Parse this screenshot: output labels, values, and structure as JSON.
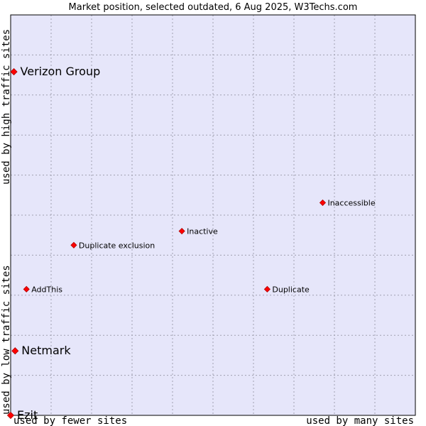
{
  "chart_data": {
    "type": "scatter",
    "title": "Market position, selected outdated, 6 Aug 2025, W3Techs.com",
    "xlabel_left": "used by fewer sites",
    "xlabel_right": "used by many sites",
    "ylabel_bottom": "used by low traffic sites",
    "ylabel_top": "used by high traffic sites",
    "xlim": [
      0,
      100
    ],
    "ylim": [
      0,
      100
    ],
    "grid": true,
    "colors": {
      "plot_bg": "#e6e6fa",
      "point": "#ff0000",
      "point_edge": "#b00000",
      "border": "#000000"
    },
    "points": [
      {
        "label": "Verizon Group",
        "x": 0.8,
        "y": 85.8,
        "size": "large"
      },
      {
        "label": "Inaccessible",
        "x": 77.1,
        "y": 53.1,
        "size": "small"
      },
      {
        "label": "Inactive",
        "x": 42.3,
        "y": 46.0,
        "size": "small"
      },
      {
        "label": "Duplicate exclusion",
        "x": 15.6,
        "y": 42.5,
        "size": "small"
      },
      {
        "label": "AddThis",
        "x": 3.9,
        "y": 31.5,
        "size": "small"
      },
      {
        "label": "Duplicate",
        "x": 63.4,
        "y": 31.5,
        "size": "small"
      },
      {
        "label": "Netmark",
        "x": 1.1,
        "y": 16.1,
        "size": "large"
      },
      {
        "label": "Ezit",
        "x": 0.0,
        "y": 0.0,
        "size": "large"
      }
    ]
  }
}
